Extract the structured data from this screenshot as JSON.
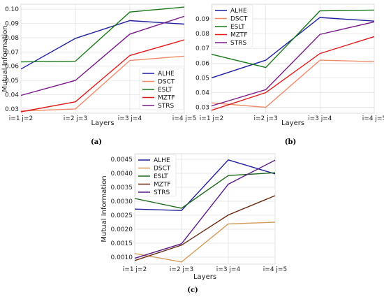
{
  "chart_data": [
    {
      "type": "line",
      "caption": "(a)",
      "xlabel": "Layers",
      "ylabel": "Mutual Information",
      "categories": [
        "i=1 j=2",
        "i=2 j=3",
        "i=3 j=4",
        "i=4 j=5"
      ],
      "ylim": [
        0.027,
        0.1035
      ],
      "yticks": [
        0.03,
        0.04,
        0.05,
        0.06,
        0.07,
        0.08,
        0.09,
        0.1
      ],
      "ytick_labels": [
        "0.03",
        "0.04",
        "0.05",
        "0.06",
        "0.07",
        "0.08",
        "0.09",
        "0.10"
      ],
      "grid": true,
      "legend": "bottom-right",
      "series": [
        {
          "name": "ALHE",
          "color": "#1f1f9f",
          "values": [
            0.058,
            0.0795,
            0.092,
            0.0895
          ]
        },
        {
          "name": "DSCT",
          "color": "#f08a6a",
          "values": [
            0.0285,
            0.03,
            0.064,
            0.067
          ]
        },
        {
          "name": "ESLT",
          "color": "#1a7a1a",
          "values": [
            0.063,
            0.0635,
            0.098,
            0.1015
          ]
        },
        {
          "name": "MZTF",
          "color": "#e01b1b",
          "values": [
            0.028,
            0.035,
            0.0675,
            0.0785
          ]
        },
        {
          "name": "STRS",
          "color": "#7a1a8a",
          "values": [
            0.0395,
            0.05,
            0.0825,
            0.095
          ]
        }
      ]
    },
    {
      "type": "line",
      "caption": "(b)",
      "xlabel": "Layers",
      "ylabel": "",
      "categories": [
        "i=1 j=2",
        "i=2 j=3",
        "i=3 j=4",
        "i=4 j=5"
      ],
      "ylim": [
        0.026,
        0.1
      ],
      "yticks": [
        0.03,
        0.04,
        0.05,
        0.06,
        0.07,
        0.08,
        0.09
      ],
      "ytick_labels": [
        "0.03",
        "0.04",
        "0.05",
        "0.06",
        "0.07",
        "0.08",
        "0.09"
      ],
      "grid": true,
      "legend": "top-left",
      "series": [
        {
          "name": "ALHE",
          "color": "#1f1f9f",
          "values": [
            0.05,
            0.062,
            0.091,
            0.0885
          ]
        },
        {
          "name": "DSCT",
          "color": "#f08a6a",
          "values": [
            0.033,
            0.03,
            0.062,
            0.061
          ]
        },
        {
          "name": "ESLT",
          "color": "#1a7a1a",
          "values": [
            0.066,
            0.057,
            0.0955,
            0.096
          ]
        },
        {
          "name": "MZTF",
          "color": "#e01b1b",
          "values": [
            0.028,
            0.04,
            0.0665,
            0.078
          ]
        },
        {
          "name": "STRS",
          "color": "#7a1a8a",
          "values": [
            0.031,
            0.042,
            0.0795,
            0.088
          ]
        }
      ]
    },
    {
      "type": "line",
      "caption": "(c)",
      "xlabel": "Layers",
      "ylabel": "Mutual Information",
      "categories": [
        "i=1 j=2",
        "i=2 j=3",
        "i=3 j=4",
        "i=4 j=5"
      ],
      "ylim": [
        0.00075,
        0.0047
      ],
      "yticks": [
        0.001,
        0.0015,
        0.002,
        0.0025,
        0.003,
        0.0035,
        0.004,
        0.0045
      ],
      "ytick_labels": [
        "0.0010",
        "0.0015",
        "0.0020",
        "0.0025",
        "0.0030",
        "0.0035",
        "0.0040",
        "0.0045"
      ],
      "grid": true,
      "legend": "top-left",
      "series": [
        {
          "name": "ALHE",
          "color": "#1f1f9f",
          "values": [
            0.00272,
            0.00267,
            0.00448,
            0.00398
          ]
        },
        {
          "name": "DSCT",
          "color": "#d49a5a",
          "values": [
            0.00113,
            0.00083,
            0.00219,
            0.00225
          ]
        },
        {
          "name": "ESLT",
          "color": "#1a6a1a",
          "values": [
            0.0031,
            0.00275,
            0.00392,
            0.00402
          ]
        },
        {
          "name": "MZTF",
          "color": "#6a2a10",
          "values": [
            0.00088,
            0.00143,
            0.00251,
            0.0032
          ]
        },
        {
          "name": "STRS",
          "color": "#5a1a8a",
          "values": [
            0.00096,
            0.00148,
            0.00361,
            0.00447
          ]
        }
      ]
    }
  ]
}
